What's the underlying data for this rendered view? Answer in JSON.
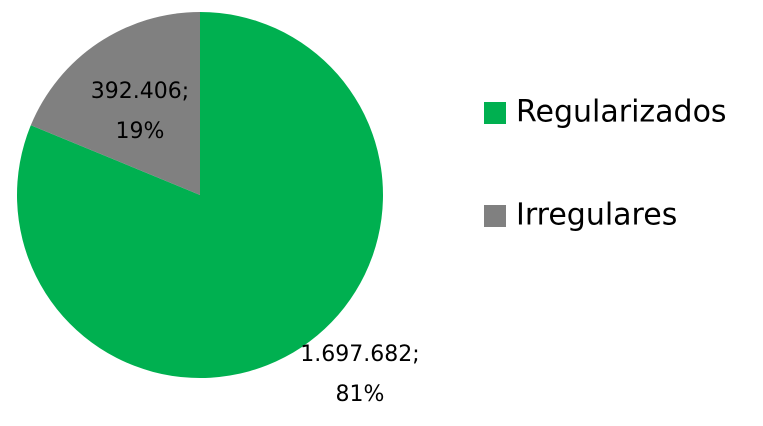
{
  "chart_data": {
    "type": "pie",
    "categories": [
      "Regularizados",
      "Irregulares"
    ],
    "values": [
      1697682,
      392406
    ],
    "value_labels": [
      "1.697.682;",
      "392.406;"
    ],
    "percentages": [
      81,
      19
    ],
    "percentage_labels": [
      "81%",
      "19%"
    ],
    "colors": [
      "#00b050",
      "#808080"
    ],
    "legend": "right"
  }
}
